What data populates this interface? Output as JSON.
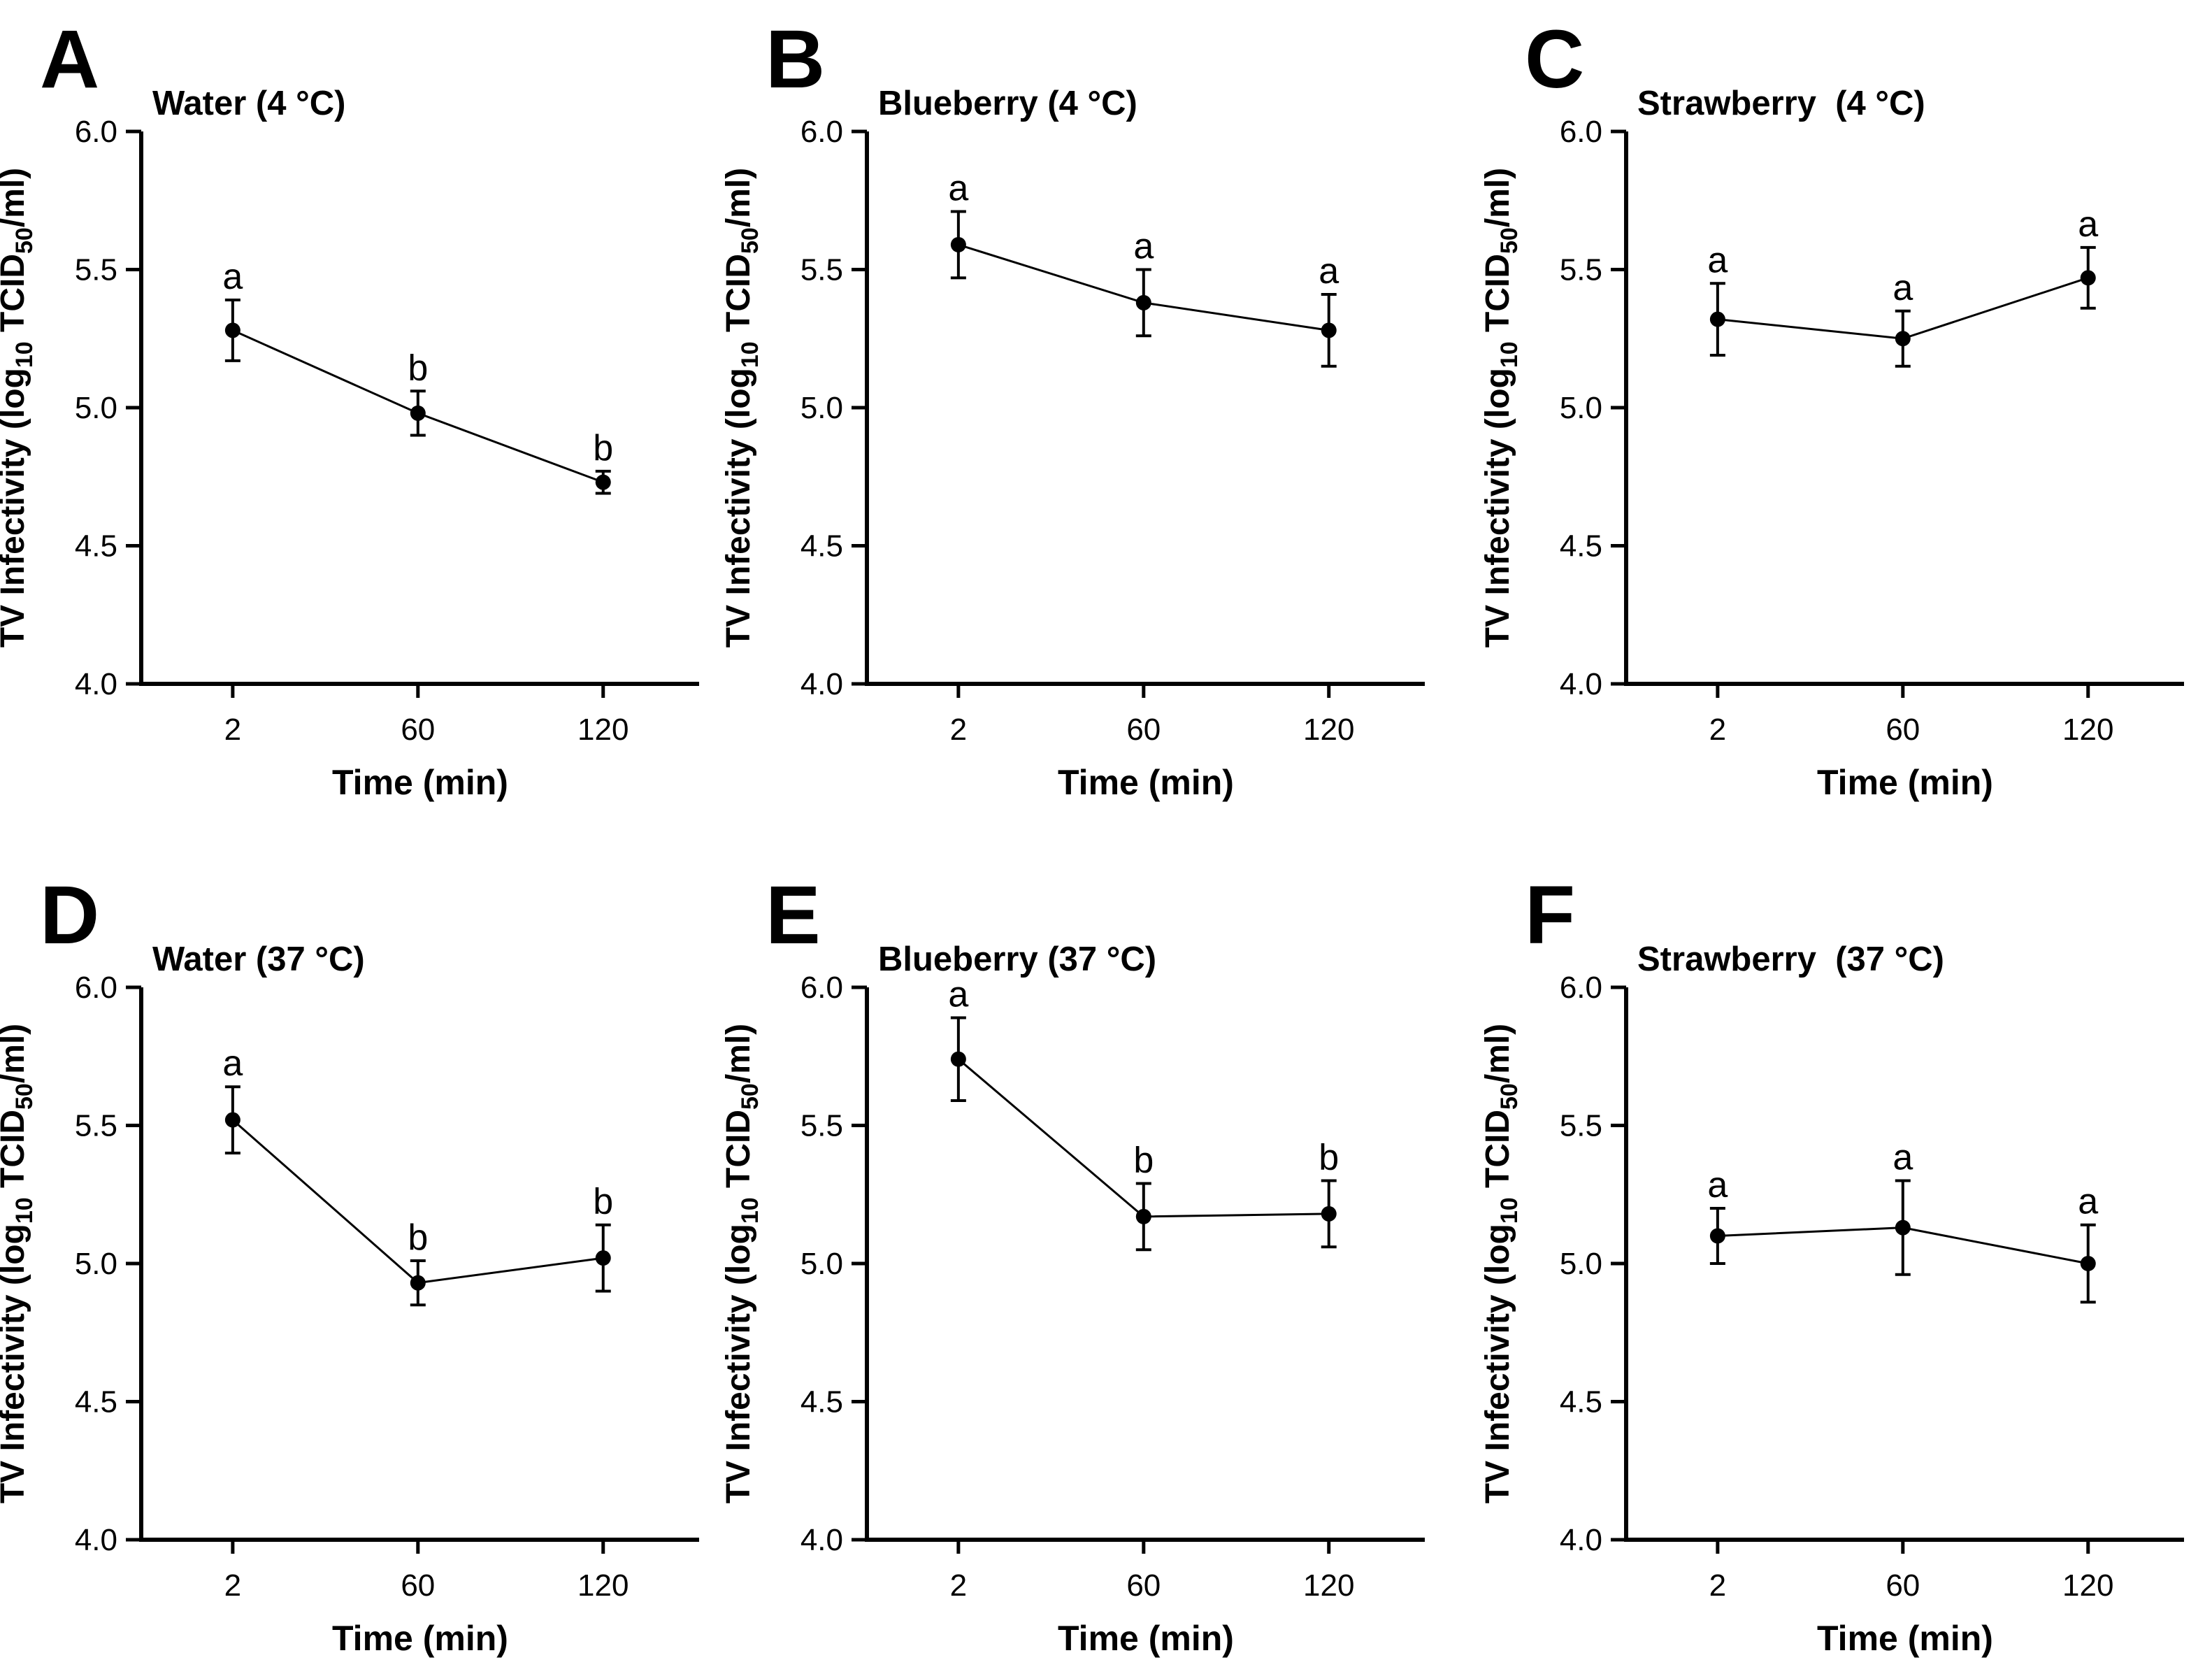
{
  "figure": {
    "x_axis_label": "Time (min)",
    "x_tick_labels": [
      "2",
      "60",
      "120"
    ],
    "y_tick_labels": [
      "4.0",
      "4.5",
      "5.0",
      "5.5",
      "6.0"
    ],
    "y_axis_label": "TV Infectivity (log10 TCID50/ml)",
    "y_axis_label_parts": {
      "prefix": "TV Infectivity (log",
      "sub1": "10",
      "mid": " TCID",
      "sub2": "50",
      "suffix": "/ml)"
    },
    "colors": {
      "ink": "#000000",
      "background": "#ffffff"
    }
  },
  "chart_data": [
    {
      "type": "line",
      "panel_letter": "A",
      "title": "Water (4 °C)",
      "xlabel": "Time (min)",
      "ylabel": "TV Infectivity (log10 TCID50/ml)",
      "x": [
        2,
        60,
        120
      ],
      "values": [
        5.28,
        4.98,
        4.73
      ],
      "errors": [
        0.11,
        0.08,
        0.04
      ],
      "sig_letters": [
        "a",
        "b",
        "b"
      ],
      "ylim": [
        4.0,
        6.0
      ],
      "yticks": [
        4.0,
        4.5,
        5.0,
        5.5,
        6.0
      ]
    },
    {
      "type": "line",
      "panel_letter": "B",
      "title": "Blueberry (4 °C)",
      "xlabel": "Time (min)",
      "ylabel": "TV Infectivity (log10 TCID50/ml)",
      "x": [
        2,
        60,
        120
      ],
      "values": [
        5.59,
        5.38,
        5.28
      ],
      "errors": [
        0.12,
        0.12,
        0.13
      ],
      "sig_letters": [
        "a",
        "a",
        "a"
      ],
      "ylim": [
        4.0,
        6.0
      ],
      "yticks": [
        4.0,
        4.5,
        5.0,
        5.5,
        6.0
      ]
    },
    {
      "type": "line",
      "panel_letter": "C",
      "title": "Strawberry  (4 °C)",
      "xlabel": "Time (min)",
      "ylabel": "TV Infectivity (log10 TCID50/ml)",
      "x": [
        2,
        60,
        120
      ],
      "values": [
        5.32,
        5.25,
        5.47
      ],
      "errors": [
        0.13,
        0.1,
        0.11
      ],
      "sig_letters": [
        "a",
        "a",
        "a"
      ],
      "ylim": [
        4.0,
        6.0
      ],
      "yticks": [
        4.0,
        4.5,
        5.0,
        5.5,
        6.0
      ]
    },
    {
      "type": "line",
      "panel_letter": "D",
      "title": "Water (37 °C)",
      "xlabel": "Time (min)",
      "ylabel": "TV Infectivity (log10 TCID50/ml)",
      "x": [
        2,
        60,
        120
      ],
      "values": [
        5.52,
        4.93,
        5.02
      ],
      "errors": [
        0.12,
        0.08,
        0.12
      ],
      "sig_letters": [
        "a",
        "b",
        "b"
      ],
      "ylim": [
        4.0,
        6.0
      ],
      "yticks": [
        4.0,
        4.5,
        5.0,
        5.5,
        6.0
      ]
    },
    {
      "type": "line",
      "panel_letter": "E",
      "title": "Blueberry (37 °C)",
      "xlabel": "Time (min)",
      "ylabel": "TV Infectivity (log10 TCID50/ml)",
      "x": [
        2,
        60,
        120
      ],
      "values": [
        5.74,
        5.17,
        5.18
      ],
      "errors": [
        0.15,
        0.12,
        0.12
      ],
      "sig_letters": [
        "a",
        "b",
        "b"
      ],
      "ylim": [
        4.0,
        6.0
      ],
      "yticks": [
        4.0,
        4.5,
        5.0,
        5.5,
        6.0
      ]
    },
    {
      "type": "line",
      "panel_letter": "F",
      "title": "Strawberry  (37 °C)",
      "xlabel": "Time (min)",
      "ylabel": "TV Infectivity (log10 TCID50/ml)",
      "x": [
        2,
        60,
        120
      ],
      "values": [
        5.1,
        5.13,
        5.0
      ],
      "errors": [
        0.1,
        0.17,
        0.14
      ],
      "sig_letters": [
        "a",
        "a",
        "a"
      ],
      "ylim": [
        4.0,
        6.0
      ],
      "yticks": [
        4.0,
        4.5,
        5.0,
        5.5,
        6.0
      ]
    }
  ]
}
